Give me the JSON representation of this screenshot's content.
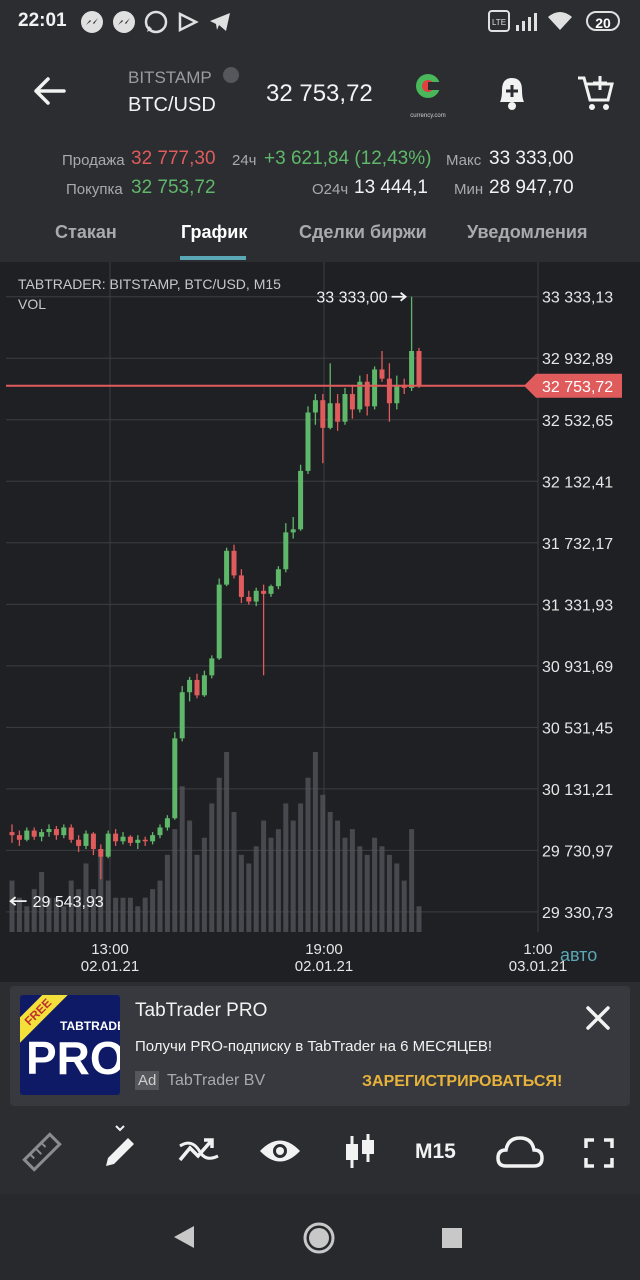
{
  "status_bar": {
    "time": "22:01",
    "battery": "20",
    "icons": [
      "messenger-icon",
      "messenger-icon",
      "whatsapp-icon",
      "play-games-icon",
      "telegram-icon",
      "volte-icon",
      "signal-icon",
      "wifi-icon"
    ]
  },
  "header": {
    "exchange": "BITSTAMP",
    "pair": "BTC/USD",
    "price": "32 753,72",
    "logo_text": "currency.com"
  },
  "stats": {
    "sell_label": "Продажа",
    "sell_value": "32 777,30",
    "buy_label": "Покупка",
    "buy_value": "32 753,72",
    "change_label": "24ч",
    "change_value": "+3 621,84 (12,43%)",
    "volume_label": "O24ч",
    "volume_value": "13 444,1",
    "max_label": "Макс",
    "max_value": "33 333,00",
    "min_label": "Мин",
    "min_value": "28 947,70"
  },
  "tabs": [
    "Стакан",
    "График",
    "Сделки биржи",
    "Уведомления"
  ],
  "active_tab": "График",
  "chart_data": {
    "type": "candlestick",
    "title": "TABTRADER: BITSTAMP, BTC/USD, M15",
    "subtitle": "VOL",
    "y_ticks": [
      "33 333,13",
      "32 932,89",
      "32 532,65",
      "32 132,41",
      "31 732,17",
      "31 331,93",
      "30 931,69",
      "30 531,45",
      "30 131,21",
      "29 730,97",
      "29 330,73"
    ],
    "y_tick_values": [
      33333.13,
      32932.89,
      32532.65,
      32132.41,
      31732.17,
      31331.93,
      30931.69,
      30531.45,
      30131.21,
      29730.97,
      29330.73
    ],
    "ylim": [
      29200,
      33520
    ],
    "x_ticks": [
      {
        "time": "13:00",
        "date": "02.01.21"
      },
      {
        "time": "19:00",
        "date": "02.01.21"
      },
      {
        "time": "1:00",
        "date": "03.01.21"
      }
    ],
    "current_price_label": "32 753,72",
    "current_price": 32753.72,
    "max_marker": "33 333,00",
    "max_value": 33333.0,
    "min_marker": "29 543,93",
    "min_value": 29543.93,
    "auto_label": "авто",
    "colors": {
      "up": "#5fb86a",
      "down": "#e05b5b",
      "volume": "#55575c"
    },
    "candles": [
      [
        29850,
        29900,
        29780,
        29830
      ],
      [
        29830,
        29860,
        29760,
        29800
      ],
      [
        29800,
        29880,
        29790,
        29860
      ],
      [
        29860,
        29880,
        29800,
        29820
      ],
      [
        29820,
        29870,
        29790,
        29850
      ],
      [
        29850,
        29900,
        29820,
        29870
      ],
      [
        29870,
        29890,
        29800,
        29830
      ],
      [
        29830,
        29900,
        29810,
        29880
      ],
      [
        29880,
        29900,
        29780,
        29800
      ],
      [
        29800,
        29830,
        29720,
        29760
      ],
      [
        29760,
        29860,
        29740,
        29840
      ],
      [
        29840,
        29850,
        29700,
        29740
      ],
      [
        29740,
        29770,
        29544,
        29690
      ],
      [
        29690,
        29860,
        29680,
        29840
      ],
      [
        29840,
        29870,
        29760,
        29790
      ],
      [
        29790,
        29850,
        29770,
        29820
      ],
      [
        29820,
        29830,
        29760,
        29780
      ],
      [
        29780,
        29830,
        29740,
        29800
      ],
      [
        29800,
        29820,
        29760,
        29790
      ],
      [
        29790,
        29850,
        29770,
        29830
      ],
      [
        29830,
        29900,
        29810,
        29880
      ],
      [
        29880,
        29960,
        29860,
        29940
      ],
      [
        29940,
        30500,
        29930,
        30460
      ],
      [
        30460,
        30800,
        30440,
        30760
      ],
      [
        30760,
        30860,
        30700,
        30840
      ],
      [
        30840,
        30880,
        30720,
        30740
      ],
      [
        30740,
        30900,
        30730,
        30870
      ],
      [
        30870,
        31000,
        30850,
        30980
      ],
      [
        30980,
        31500,
        30970,
        31460
      ],
      [
        31460,
        31700,
        31450,
        31680
      ],
      [
        31680,
        31720,
        31500,
        31520
      ],
      [
        31520,
        31560,
        31340,
        31380
      ],
      [
        31380,
        31420,
        31330,
        31350
      ],
      [
        31350,
        31440,
        31320,
        31420
      ],
      [
        31420,
        31460,
        30870,
        31400
      ],
      [
        31400,
        31460,
        31380,
        31450
      ],
      [
        31450,
        31580,
        31430,
        31560
      ],
      [
        31560,
        31860,
        31540,
        31800
      ],
      [
        31800,
        31900,
        31760,
        31820
      ],
      [
        31820,
        32240,
        31810,
        32200
      ],
      [
        32200,
        32620,
        32180,
        32580
      ],
      [
        32580,
        32700,
        32500,
        32660
      ],
      [
        32660,
        32700,
        32250,
        32480
      ],
      [
        32480,
        32900,
        32470,
        32640
      ],
      [
        32640,
        32700,
        32460,
        32520
      ],
      [
        32520,
        32740,
        32500,
        32700
      ],
      [
        32700,
        32760,
        32540,
        32600
      ],
      [
        32600,
        32820,
        32580,
        32780
      ],
      [
        32780,
        32830,
        32560,
        32620
      ],
      [
        32620,
        32880,
        32600,
        32860
      ],
      [
        32860,
        32980,
        32780,
        32800
      ],
      [
        32800,
        32900,
        32520,
        32640
      ],
      [
        32640,
        32820,
        32600,
        32760
      ],
      [
        32760,
        32800,
        32700,
        32740
      ],
      [
        32740,
        33333,
        32720,
        32980
      ],
      [
        32980,
        33000,
        32740,
        32753.72
      ]
    ],
    "volumes": [
      6,
      4,
      3,
      5,
      7,
      4,
      4,
      3,
      6,
      5,
      8,
      5,
      9,
      6,
      4,
      4,
      4,
      3,
      4,
      5,
      6,
      9,
      12,
      17,
      13,
      9,
      11,
      15,
      18,
      21,
      14,
      9,
      8,
      10,
      13,
      11,
      12,
      15,
      13,
      15,
      18,
      21,
      16,
      14,
      13,
      11,
      12,
      10,
      9,
      11,
      10,
      9,
      8,
      6,
      12,
      3
    ]
  },
  "ad": {
    "badge": "FREE",
    "brand_small": "TABTRADER",
    "brand_big": "PRO",
    "title": "TabTrader PRO",
    "text": "Получи PRO-подписку в TabTrader на 6 МЕСЯЦЕВ!",
    "ad_label": "Ad",
    "advertiser": "TabTrader BV",
    "cta": "ЗАРЕГИСТРИРОВАТЬСЯ!"
  },
  "toolbar": {
    "items": [
      "ruler-icon",
      "pencil-icon",
      "indicators-icon",
      "eye-icon",
      "candles-icon",
      "timeframe",
      "cloud-icon",
      "fullscreen-icon"
    ],
    "timeframe_label": "M15"
  },
  "nav": [
    "back-icon",
    "home-icon",
    "recents-icon"
  ]
}
